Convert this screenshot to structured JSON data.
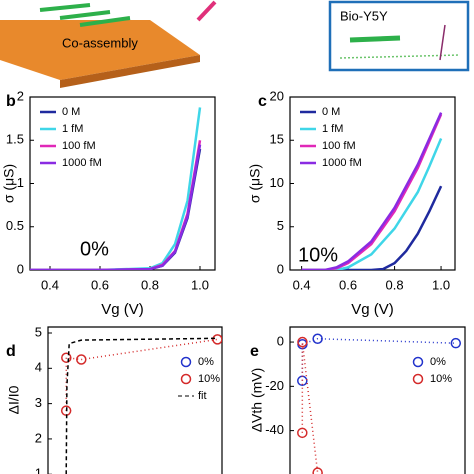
{
  "illustration": {
    "label": "Co-assembly",
    "inset_label": "Bio-Y5Y"
  },
  "chart_data": [
    {
      "type": "line",
      "panel_label": "b",
      "xlabel": "Vg (V)",
      "ylabel": "σ (μS)",
      "annotation": "0%",
      "legend": "upper-left",
      "xlim": [
        0.32,
        1.06
      ],
      "xticks": [
        0.4,
        0.6,
        0.8,
        {
          "value": 1,
          "label": "1.0"
        }
      ],
      "ylim": [
        0,
        2
      ],
      "yticks": [
        0,
        0.5,
        1,
        1.5,
        2
      ],
      "series": [
        {
          "name": "0 M",
          "color": "#1f2a9e",
          "x": [
            0.32,
            0.6,
            0.8,
            0.85,
            0.9,
            0.95,
            1.0
          ],
          "values": [
            0,
            0,
            0.01,
            0.05,
            0.2,
            0.6,
            1.4
          ]
        },
        {
          "name": "1 fM",
          "color": "#3fd6e8",
          "x": [
            0.32,
            0.6,
            0.8,
            0.85,
            0.9,
            0.95,
            1.0
          ],
          "values": [
            0,
            0,
            0.02,
            0.08,
            0.3,
            0.8,
            1.88
          ]
        },
        {
          "name": "100 fM",
          "color": "#e028b8",
          "x": [
            0.32,
            0.6,
            0.8,
            0.85,
            0.9,
            0.95,
            1.0
          ],
          "values": [
            0,
            0,
            0.01,
            0.06,
            0.22,
            0.65,
            1.5
          ]
        },
        {
          "name": "1000 fM",
          "color": "#8a2be2",
          "x": [
            0.32,
            0.6,
            0.8,
            0.85,
            0.9,
            0.95,
            1.0
          ],
          "values": [
            0,
            0,
            0.01,
            0.05,
            0.21,
            0.62,
            1.45
          ]
        }
      ]
    },
    {
      "type": "line",
      "panel_label": "c",
      "xlabel": "Vg (V)",
      "ylabel": "σ (μS)",
      "annotation": "10%",
      "legend": "upper-left",
      "xlim": [
        0.35,
        1.06
      ],
      "xticks": [
        0.4,
        0.6,
        0.8,
        {
          "value": 1,
          "label": "1.0"
        }
      ],
      "ylim": [
        0,
        20
      ],
      "yticks": [
        0,
        5,
        10,
        15,
        20
      ],
      "series": [
        {
          "name": "0 M",
          "color": "#1f2a9e",
          "x": [
            0.4,
            0.7,
            0.75,
            0.8,
            0.85,
            0.9,
            0.95,
            1.0
          ],
          "values": [
            0,
            0,
            0.1,
            0.8,
            2.2,
            4.2,
            6.8,
            9.7
          ]
        },
        {
          "name": "1 fM",
          "color": "#3fd6e8",
          "x": [
            0.4,
            0.55,
            0.6,
            0.7,
            0.8,
            0.9,
            0.95,
            1.0
          ],
          "values": [
            0,
            0,
            0.3,
            1.8,
            4.8,
            9.0,
            12.0,
            15.2
          ]
        },
        {
          "name": "100 fM",
          "color": "#e028b8",
          "x": [
            0.4,
            0.5,
            0.55,
            0.6,
            0.7,
            0.8,
            0.9,
            1.0
          ],
          "values": [
            0,
            0,
            0.2,
            0.8,
            3.0,
            6.8,
            11.8,
            18.0
          ]
        },
        {
          "name": "1000 fM",
          "color": "#8a2be2",
          "x": [
            0.4,
            0.5,
            0.55,
            0.6,
            0.7,
            0.8,
            0.9,
            1.0
          ],
          "values": [
            0,
            0,
            0.3,
            1.0,
            3.3,
            7.2,
            12.2,
            18.2
          ]
        }
      ]
    },
    {
      "type": "line",
      "panel_label": "d",
      "ylabel": "ΔI/I0",
      "legend": "right",
      "xlim": [
        -120,
        1030
      ],
      "ylim": [
        0.95,
        5.17
      ],
      "yticks": [
        1,
        2,
        3,
        4,
        5
      ],
      "series": [
        {
          "name": "0%",
          "color": "#2233cc",
          "marker": true,
          "dash": "1,3",
          "x": [],
          "values": []
        },
        {
          "name": "10%",
          "color": "#d42a2a",
          "marker": true,
          "dash": "1,3",
          "x": [
            0.1,
            1,
            100,
            1000
          ],
          "values": [
            2.8,
            4.3,
            4.25,
            4.82
          ]
        },
        {
          "name": "fit",
          "color": "#000000",
          "marker": false,
          "dash": "4,3",
          "x": [
            0,
            5,
            20,
            100,
            1000
          ],
          "values": [
            1,
            3.5,
            4.7,
            4.8,
            4.85
          ]
        }
      ]
    },
    {
      "type": "line",
      "panel_label": "e",
      "ylabel": "ΔVth (mV)",
      "legend": "right",
      "xlim": [
        -80,
        1060
      ],
      "ylim": [
        -60.5,
        6.8
      ],
      "yticks": [
        -40,
        -20,
        0
      ],
      "series": [
        {
          "name": "0%",
          "color": "#2233cc",
          "marker": true,
          "dash": "1,3",
          "x": [
            0.1,
            1,
            100,
            1000
          ],
          "values": [
            -17.5,
            -1,
            1.5,
            -0.5
          ]
        },
        {
          "name": "10%",
          "color": "#d42a2a",
          "marker": true,
          "dash": "1,3",
          "x": [
            0.1,
            1,
            100
          ],
          "values": [
            -41,
            0,
            -59
          ]
        }
      ]
    }
  ]
}
